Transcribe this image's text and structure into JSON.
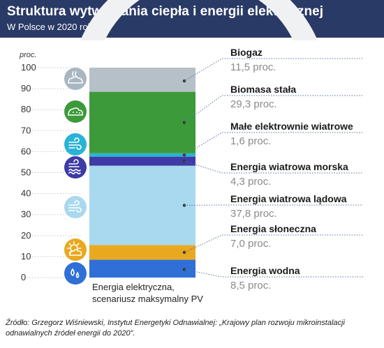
{
  "header": {
    "title": "Struktura wytwarzania ciepła i energii elektrycznej",
    "subtitle": "W Polsce w 2020 roku"
  },
  "chart_data": {
    "type": "bar",
    "stacked": true,
    "ylabel": "proc.",
    "ylim": [
      0,
      100
    ],
    "yticks": [
      0,
      10,
      20,
      30,
      40,
      50,
      60,
      70,
      80,
      90,
      100
    ],
    "category_label_lines": [
      "Energia elektryczna,",
      "scenariusz maksymalny PV"
    ],
    "series": [
      {
        "name": "Energia wodna",
        "value": 8.5,
        "value_label": "8,5 proc.",
        "color": "#2f6fd6",
        "icon": "water-drops-icon"
      },
      {
        "name": "Energia słoneczna",
        "value": 7.0,
        "value_label": "7,0 proc.",
        "color": "#e9a91f",
        "icon": "sun-cloud-icon"
      },
      {
        "name": "Energia wiatrowa lądowa",
        "value": 37.8,
        "value_label": "37,8 proc.",
        "color": "#a8d9ee",
        "icon": "wind-icon"
      },
      {
        "name": "Energia wiatrowa morska",
        "value": 4.3,
        "value_label": "4,3 proc.",
        "color": "#3e3aa6",
        "icon": "wind-waves-icon"
      },
      {
        "name": "Małe elektrownie wiatrowe",
        "value": 1.6,
        "value_label": "1,6 proc.",
        "color": "#29b3d6",
        "icon": "small-wind-icon"
      },
      {
        "name": "Biomasa stała",
        "value": 29.3,
        "value_label": "29,3 proc.",
        "color": "#3d9a3a",
        "icon": "biomass-icon"
      },
      {
        "name": "Biogaz",
        "value": 11.5,
        "value_label": "11,5 proc.",
        "color": "#b6c0c8",
        "icon": "biogas-icon"
      }
    ]
  },
  "source": "Źródło: Grzegorz Wiśniewski, Instytut Energetyki Odnawialnej: „Krajowy plan rozwoju mikroinstalacji odnawialnych źródeł energii do 2020”."
}
